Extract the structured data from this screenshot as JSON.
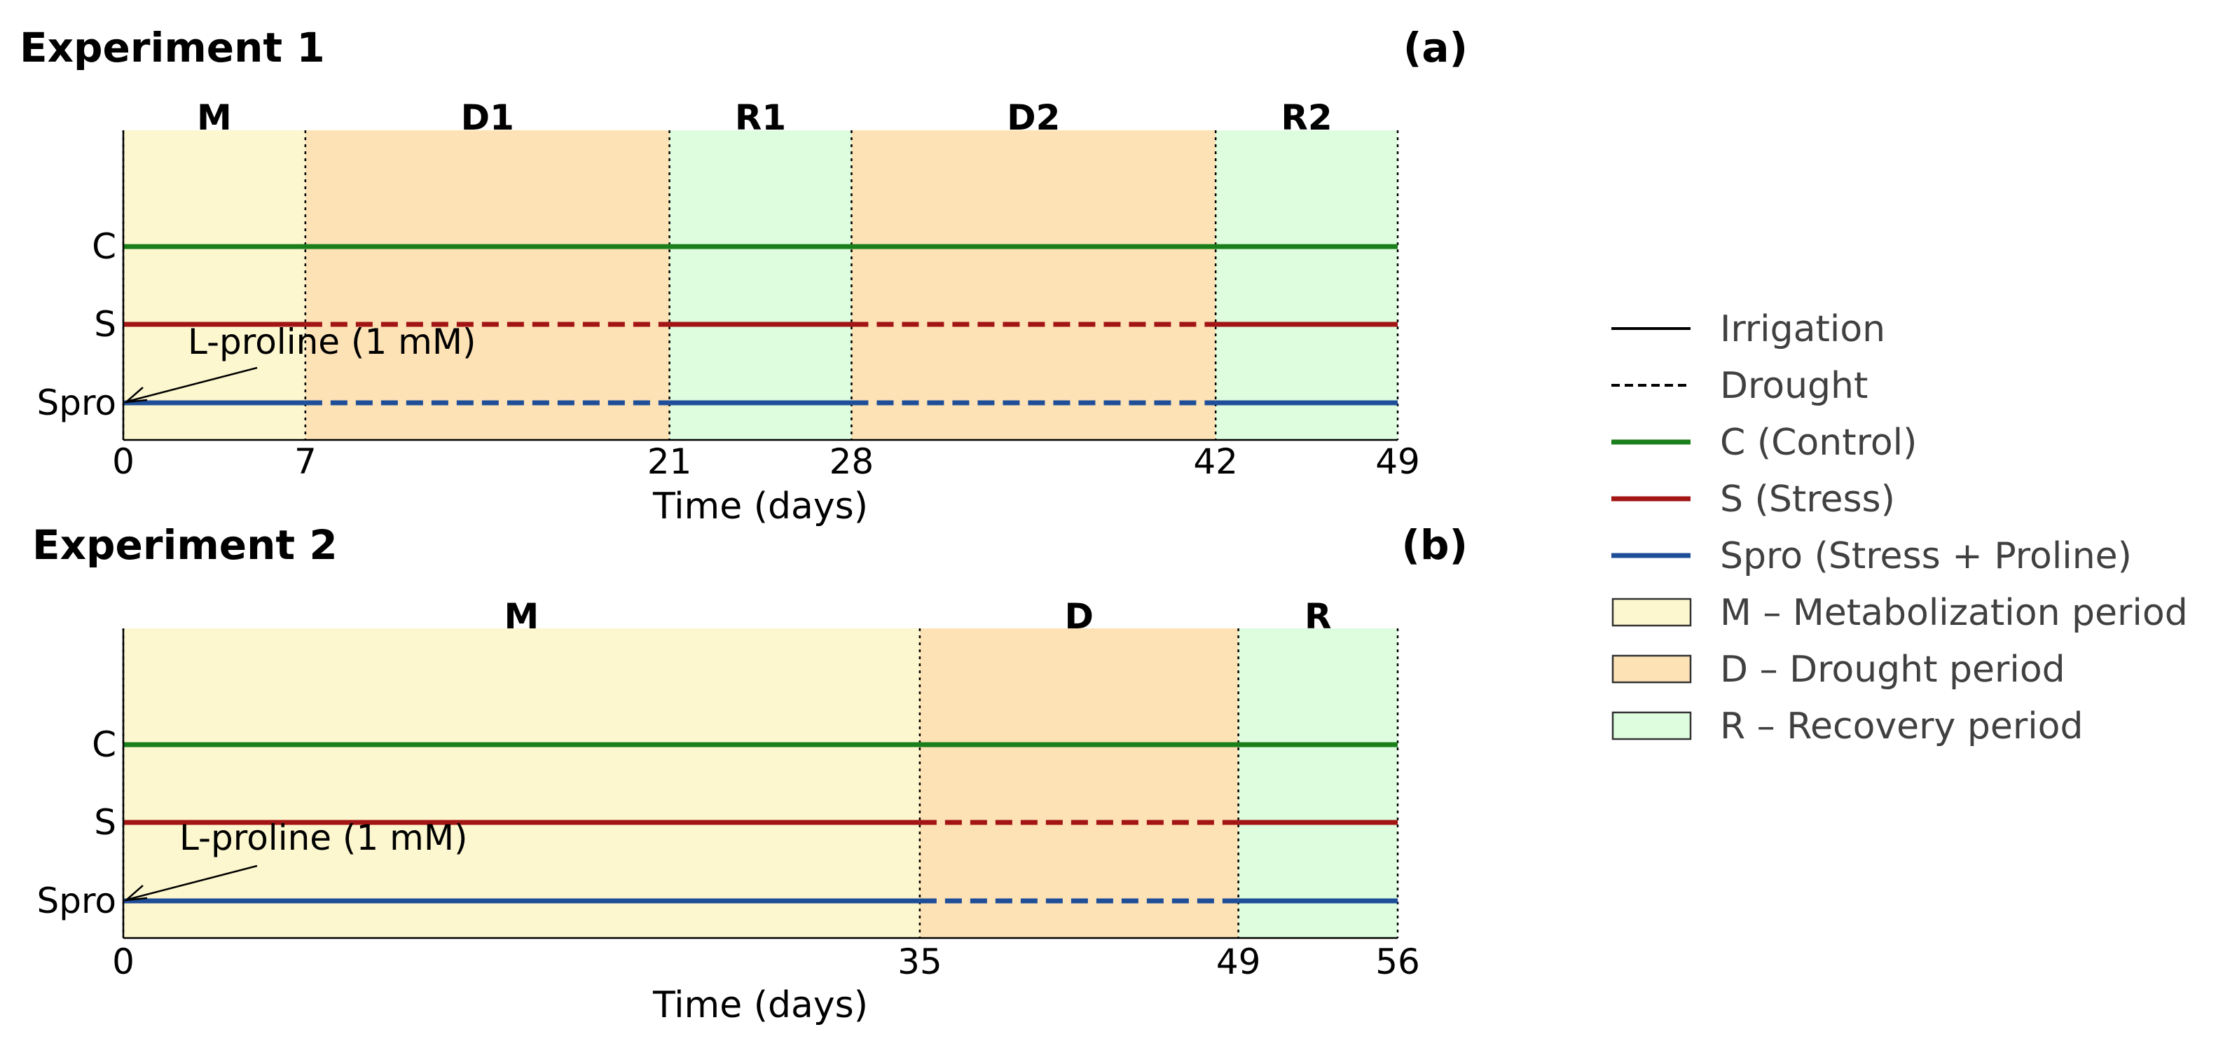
{
  "chart_data": [
    {
      "type": "timeline",
      "panel_label": "(a)",
      "title": "Experiment 1",
      "xlabel": "Time (days)",
      "xlim": [
        0,
        49
      ],
      "xticks": [
        0,
        7,
        21,
        28,
        42,
        49
      ],
      "periods": [
        {
          "label": "M",
          "start": 0,
          "end": 7,
          "kind": "M"
        },
        {
          "label": "D1",
          "start": 7,
          "end": 21,
          "kind": "D"
        },
        {
          "label": "R1",
          "start": 21,
          "end": 28,
          "kind": "R"
        },
        {
          "label": "D2",
          "start": 28,
          "end": 42,
          "kind": "D"
        },
        {
          "label": "R2",
          "start": 42,
          "end": 49,
          "kind": "R"
        }
      ],
      "treatments": [
        {
          "name": "C",
          "color": "#1a7f1a",
          "segments": [
            {
              "start": 0,
              "end": 49,
              "style": "Irrigation"
            }
          ]
        },
        {
          "name": "S",
          "color": "#a31515",
          "segments": [
            {
              "start": 0,
              "end": 7,
              "style": "Irrigation"
            },
            {
              "start": 7,
              "end": 21,
              "style": "Drought"
            },
            {
              "start": 21,
              "end": 28,
              "style": "Irrigation"
            },
            {
              "start": 28,
              "end": 42,
              "style": "Drought"
            },
            {
              "start": 42,
              "end": 49,
              "style": "Irrigation"
            }
          ]
        },
        {
          "name": "Spro",
          "color": "#1f4e99",
          "segments": [
            {
              "start": 0,
              "end": 7,
              "style": "Irrigation"
            },
            {
              "start": 7,
              "end": 21,
              "style": "Drought"
            },
            {
              "start": 21,
              "end": 28,
              "style": "Irrigation"
            },
            {
              "start": 28,
              "end": 42,
              "style": "Drought"
            },
            {
              "start": 42,
              "end": 49,
              "style": "Irrigation"
            }
          ]
        }
      ],
      "annotation": {
        "text": "L-proline (1 mM)",
        "target_treatment": "Spro",
        "target_day": 0
      }
    },
    {
      "type": "timeline",
      "panel_label": "(b)",
      "title": "Experiment 2",
      "xlabel": "Time (days)",
      "xlim": [
        0,
        56
      ],
      "xticks": [
        0,
        35,
        49,
        56
      ],
      "periods": [
        {
          "label": "M",
          "start": 0,
          "end": 35,
          "kind": "M"
        },
        {
          "label": "D",
          "start": 35,
          "end": 49,
          "kind": "D"
        },
        {
          "label": "R",
          "start": 49,
          "end": 56,
          "kind": "R"
        }
      ],
      "treatments": [
        {
          "name": "C",
          "color": "#1a7f1a",
          "segments": [
            {
              "start": 0,
              "end": 56,
              "style": "Irrigation"
            }
          ]
        },
        {
          "name": "S",
          "color": "#a31515",
          "segments": [
            {
              "start": 0,
              "end": 35,
              "style": "Irrigation"
            },
            {
              "start": 35,
              "end": 49,
              "style": "Drought"
            },
            {
              "start": 49,
              "end": 56,
              "style": "Irrigation"
            }
          ]
        },
        {
          "name": "Spro",
          "color": "#1f4e99",
          "segments": [
            {
              "start": 0,
              "end": 35,
              "style": "Irrigation"
            },
            {
              "start": 35,
              "end": 49,
              "style": "Drought"
            },
            {
              "start": 49,
              "end": 56,
              "style": "Irrigation"
            }
          ]
        }
      ],
      "annotation": {
        "text": "L-proline (1 mM)",
        "target_treatment": "Spro",
        "target_day": 0
      }
    }
  ],
  "period_colors": {
    "M": "#fdf7cf",
    "D": "#fde2b5",
    "R": "#ddfdde"
  },
  "legend": {
    "position": "right",
    "items": [
      {
        "label": "Irrigation",
        "kind": "line",
        "color": "#000000",
        "dash": false
      },
      {
        "label": "Drought",
        "kind": "line",
        "color": "#000000",
        "dash": true
      },
      {
        "label": "C (Control)",
        "kind": "line",
        "color": "#1a7f1a",
        "dash": false
      },
      {
        "label": "S (Stress)",
        "kind": "line",
        "color": "#a31515",
        "dash": false
      },
      {
        "label": "Spro (Stress + Proline)",
        "kind": "line",
        "color": "#1f4e99",
        "dash": false
      },
      {
        "label": "M – Metabolization period",
        "kind": "patch",
        "color": "#fdf7cf"
      },
      {
        "label": "D – Drought period",
        "kind": "patch",
        "color": "#fde2b5"
      },
      {
        "label": "R – Recovery period",
        "kind": "patch",
        "color": "#ddfdde"
      }
    ]
  }
}
